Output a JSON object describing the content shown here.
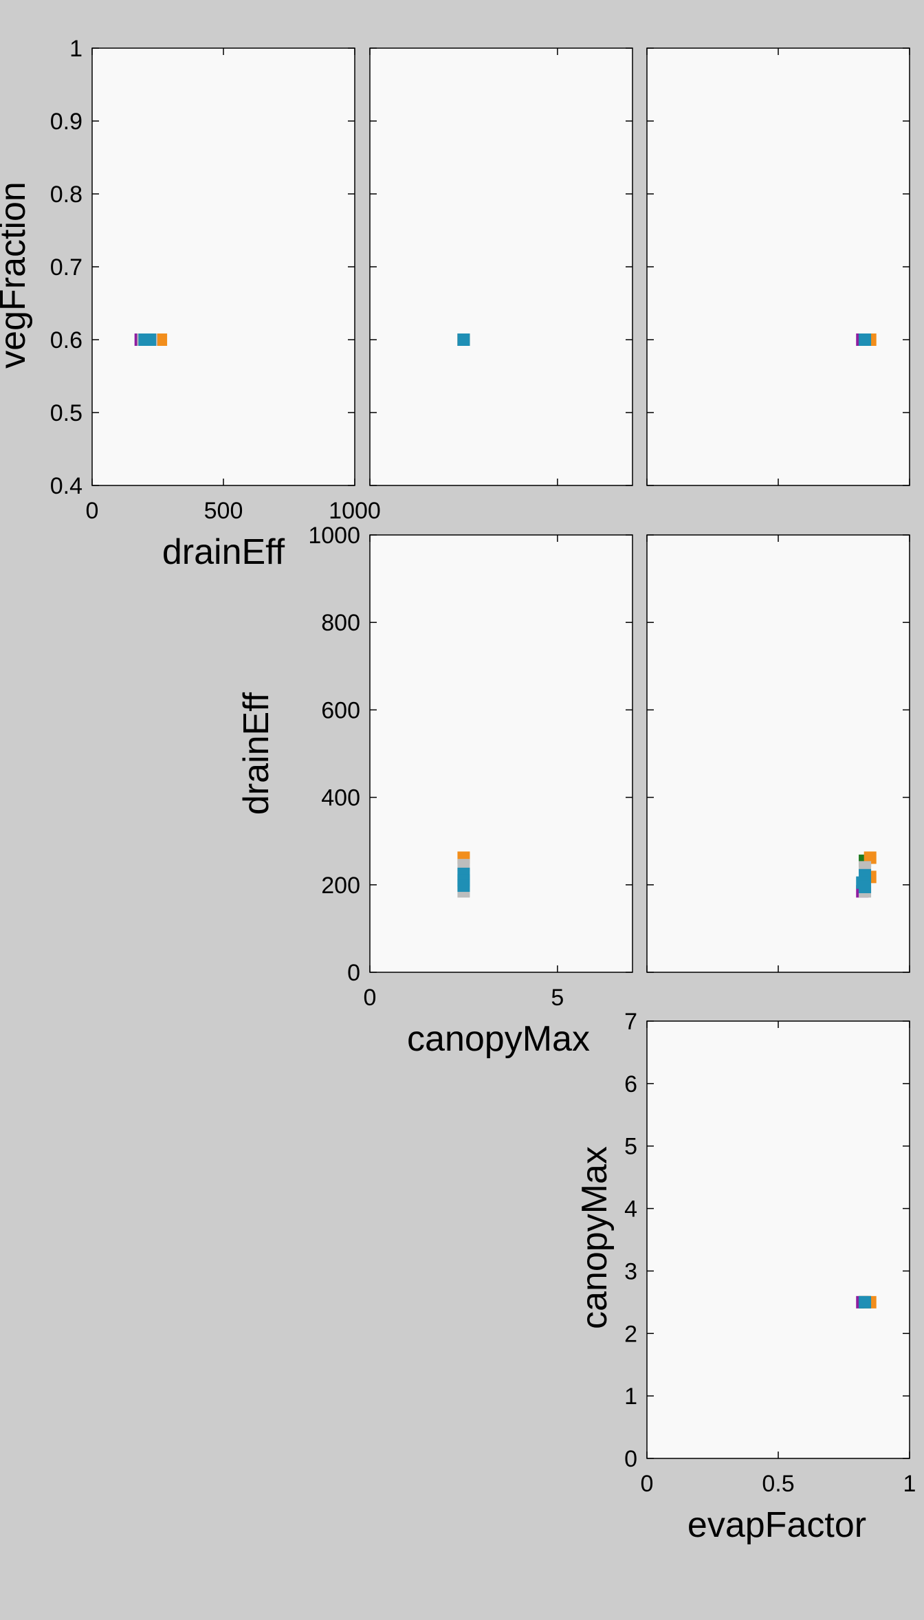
{
  "figure": {
    "background": "#cccccc",
    "axes_background": "#f9f9f9"
  },
  "series_colors": [
    "#8e1ea0",
    "#bdbdbd",
    "#1f7a1f",
    "#f28e1c",
    "#1f8fb5"
  ],
  "chart_data": [
    {
      "id": "vegFraction-vs-drainEff",
      "type": "scatter",
      "xlabel": "drainEff",
      "ylabel": "vegFraction",
      "xlim": [
        0,
        1000
      ],
      "ylim": [
        0.4,
        1
      ],
      "xticks": [
        0,
        500,
        1000
      ],
      "xtick_labels": [
        "0",
        "500",
        "1000"
      ],
      "yticks": [
        0.4,
        0.5,
        0.6,
        0.7,
        0.8,
        0.9,
        1
      ],
      "ytick_labels": [
        "0.4",
        "0.5",
        "0.6",
        "0.7",
        "0.8",
        "0.9",
        "1"
      ],
      "points": [
        {
          "x": 185,
          "y": 0.6,
          "c": 0
        },
        {
          "x": 195,
          "y": 0.6,
          "c": 1
        },
        {
          "x": 235,
          "y": 0.6,
          "c": 2
        },
        {
          "x": 262,
          "y": 0.6,
          "c": 3
        },
        {
          "x": 225,
          "y": 0.6,
          "c": 1
        },
        {
          "x": 200,
          "y": 0.6,
          "c": 4
        },
        {
          "x": 212,
          "y": 0.6,
          "c": 4
        },
        {
          "x": 220,
          "y": 0.6,
          "c": 4
        }
      ]
    },
    {
      "id": "vegFraction-vs-canopyMax",
      "type": "scatter",
      "xlabel": "",
      "ylabel": "",
      "xlim": [
        0,
        7
      ],
      "ylim": [
        0.4,
        1
      ],
      "xticks": [
        0,
        5
      ],
      "xtick_labels": [
        "",
        ""
      ],
      "yticks": [
        0.4,
        0.5,
        0.6,
        0.7,
        0.8,
        0.9,
        1
      ],
      "ytick_labels": [
        "",
        "",
        "",
        "",
        "",
        "",
        ""
      ],
      "points": [
        {
          "x": 2.5,
          "y": 0.6,
          "c": 0
        },
        {
          "x": 2.5,
          "y": 0.6,
          "c": 2
        },
        {
          "x": 2.5,
          "y": 0.6,
          "c": 3
        },
        {
          "x": 2.5,
          "y": 0.6,
          "c": 4
        }
      ]
    },
    {
      "id": "vegFraction-vs-evapFactor",
      "type": "scatter",
      "xlabel": "",
      "ylabel": "",
      "xlim": [
        0,
        1
      ],
      "ylim": [
        0.4,
        1
      ],
      "xticks": [
        0,
        0.5,
        1
      ],
      "xtick_labels": [
        "",
        "",
        ""
      ],
      "yticks": [
        0.4,
        0.5,
        0.6,
        0.7,
        0.8,
        0.9,
        1
      ],
      "ytick_labels": [
        "",
        "",
        "",
        "",
        "",
        "",
        ""
      ],
      "points": [
        {
          "x": 0.82,
          "y": 0.6,
          "c": 0
        },
        {
          "x": 0.83,
          "y": 0.6,
          "c": 2
        },
        {
          "x": 0.85,
          "y": 0.6,
          "c": 3
        },
        {
          "x": 0.83,
          "y": 0.6,
          "c": 4
        }
      ]
    },
    {
      "id": "drainEff-vs-canopyMax",
      "type": "scatter",
      "xlabel": "canopyMax",
      "ylabel": "drainEff",
      "xlim": [
        0,
        7
      ],
      "ylim": [
        0,
        1000
      ],
      "xticks": [
        0,
        5
      ],
      "xtick_labels": [
        "0",
        "5"
      ],
      "yticks": [
        0,
        200,
        400,
        600,
        800,
        1000
      ],
      "ytick_labels": [
        "0",
        "200",
        "400",
        "600",
        "800",
        "1000"
      ],
      "points": [
        {
          "x": 2.5,
          "y": 262,
          "c": 3
        },
        {
          "x": 2.5,
          "y": 245,
          "c": 1
        },
        {
          "x": 2.5,
          "y": 185,
          "c": 1
        },
        {
          "x": 2.5,
          "y": 225,
          "c": 4
        },
        {
          "x": 2.5,
          "y": 210,
          "c": 4
        },
        {
          "x": 2.5,
          "y": 198,
          "c": 4
        }
      ]
    },
    {
      "id": "drainEff-vs-evapFactor",
      "type": "scatter",
      "xlabel": "",
      "ylabel": "",
      "xlim": [
        0,
        1
      ],
      "ylim": [
        0,
        1000
      ],
      "xticks": [
        0,
        0.5,
        1
      ],
      "xtick_labels": [
        "",
        "",
        ""
      ],
      "yticks": [
        0,
        200,
        400,
        600,
        800,
        1000
      ],
      "ytick_labels": [
        "",
        "",
        "",
        "",
        "",
        ""
      ],
      "points": [
        {
          "x": 0.82,
          "y": 185,
          "c": 0
        },
        {
          "x": 0.83,
          "y": 255,
          "c": 2
        },
        {
          "x": 0.85,
          "y": 262,
          "c": 3
        },
        {
          "x": 0.85,
          "y": 218,
          "c": 3
        },
        {
          "x": 0.83,
          "y": 240,
          "c": 1
        },
        {
          "x": 0.83,
          "y": 185,
          "c": 1
        },
        {
          "x": 0.83,
          "y": 222,
          "c": 4
        },
        {
          "x": 0.82,
          "y": 205,
          "c": 4
        },
        {
          "x": 0.83,
          "y": 195,
          "c": 4
        }
      ]
    },
    {
      "id": "canopyMax-vs-evapFactor",
      "type": "scatter",
      "xlabel": "evapFactor",
      "ylabel": "canopyMax",
      "xlim": [
        0,
        1
      ],
      "ylim": [
        0,
        7
      ],
      "xticks": [
        0,
        0.5,
        1
      ],
      "xtick_labels": [
        "0",
        "0.5",
        "1"
      ],
      "yticks": [
        0,
        1,
        2,
        3,
        4,
        5,
        6,
        7
      ],
      "ytick_labels": [
        "0",
        "1",
        "2",
        "3",
        "4",
        "5",
        "6",
        "7"
      ],
      "points": [
        {
          "x": 0.82,
          "y": 2.5,
          "c": 0
        },
        {
          "x": 0.83,
          "y": 2.5,
          "c": 2
        },
        {
          "x": 0.85,
          "y": 2.5,
          "c": 3
        },
        {
          "x": 0.83,
          "y": 2.5,
          "c": 4
        }
      ]
    }
  ]
}
